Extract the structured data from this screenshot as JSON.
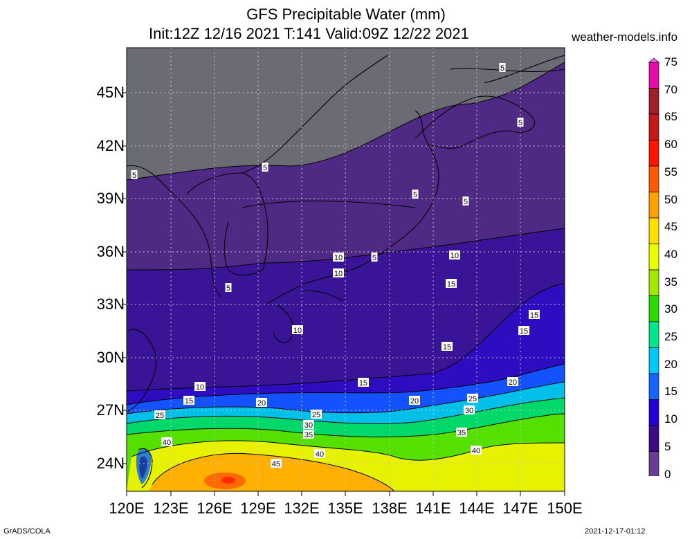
{
  "title": "GFS Precipitable Water (mm)",
  "subtitle": "Init:12Z 12/16 2021 T:141 Valid:09Z 12/22 2021",
  "site": "weather-models.info",
  "footer_left": "GrADS/COLA",
  "footer_right": "2021-12-17-01:12",
  "lat_labels": [
    "45N",
    "42N",
    "39N",
    "36N",
    "33N",
    "30N",
    "27N",
    "24N"
  ],
  "lon_labels": [
    "120E",
    "123E",
    "126E",
    "129E",
    "132E",
    "135E",
    "138E",
    "141E",
    "144E",
    "147E",
    "150E"
  ],
  "colorbar": {
    "labels": [
      "75",
      "70",
      "65",
      "60",
      "55",
      "50",
      "45",
      "40",
      "35",
      "30",
      "25",
      "20",
      "15",
      "10",
      "5",
      "0"
    ],
    "colors": [
      "#ff66ff",
      "#e60ba8",
      "#9e1f2c",
      "#c51818",
      "#ff1500",
      "#ff5a00",
      "#ffa200",
      "#ffde00",
      "#eaff00",
      "#a3e800",
      "#2adb00",
      "#00e68c",
      "#00c8ff",
      "#1466ff",
      "#2400d8",
      "#3c0b87",
      "#6a3d94",
      "#808080"
    ]
  },
  "contour_labels": [
    "5",
    "5",
    "5",
    "5",
    "5",
    "5",
    "5",
    "5",
    "10",
    "10",
    "10",
    "10",
    "10",
    "15",
    "15",
    "15",
    "15",
    "15",
    "15",
    "20",
    "20",
    "20",
    "25",
    "25",
    "25",
    "30",
    "30",
    "35",
    "35",
    "40",
    "40",
    "40",
    "45"
  ],
  "map": {
    "lon_range": [
      120,
      150
    ],
    "lat_range": [
      22.5,
      47.5
    ],
    "layers": [
      {
        "name": "pw-0-5",
        "color": "#6b6b74"
      },
      {
        "name": "pw-5-10",
        "color": "#4f2a84"
      },
      {
        "name": "pw-10-15",
        "color": "#3a1496"
      },
      {
        "name": "pw-15-20",
        "color": "#2e0cc0"
      },
      {
        "name": "pw-20-25",
        "color": "#1452ff"
      },
      {
        "name": "pw-25-30",
        "color": "#00bfe8"
      },
      {
        "name": "pw-30-35",
        "color": "#00d96a"
      },
      {
        "name": "pw-35-40",
        "color": "#55e000"
      },
      {
        "name": "pw-40-45",
        "color": "#e6f200"
      },
      {
        "name": "pw-45-50",
        "color": "#ffb000"
      },
      {
        "name": "pw-50-55",
        "color": "#ff6a00"
      }
    ]
  }
}
